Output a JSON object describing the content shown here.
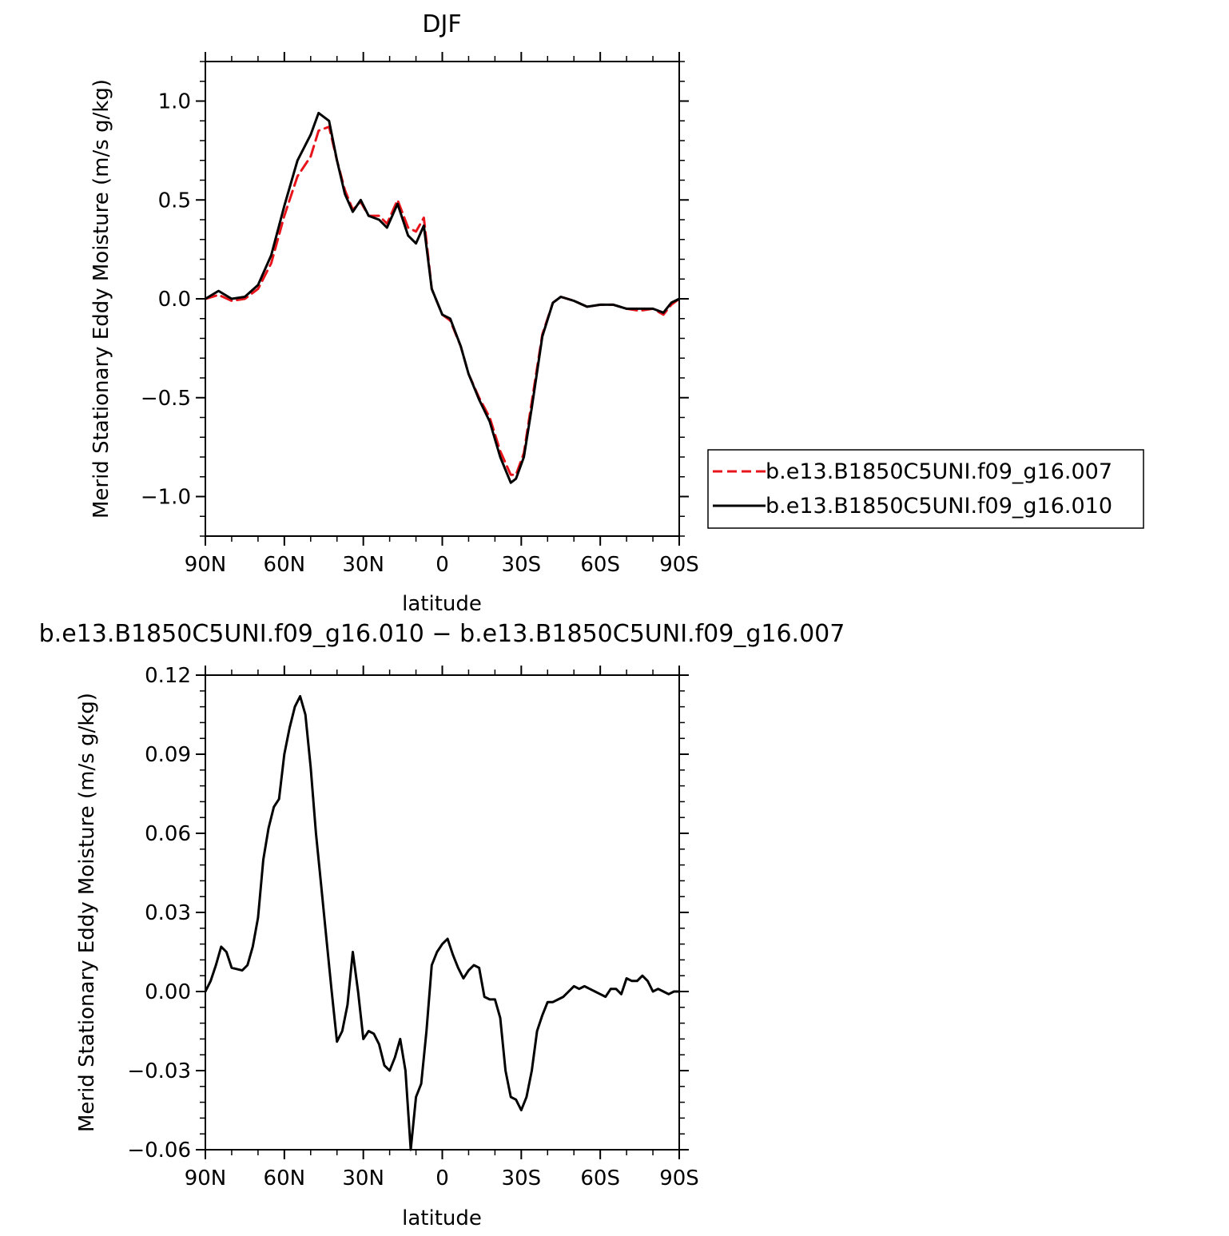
{
  "chart_data": [
    {
      "type": "line",
      "title": "DJF",
      "xlabel": "latitude",
      "ylabel": "Merid Stationary Eddy Moisture (m/s g/kg)",
      "xlim": [
        90,
        -90
      ],
      "ylim": [
        -1.2,
        1.2
      ],
      "xticks": [
        90,
        60,
        30,
        0,
        -30,
        -60,
        -90
      ],
      "xtick_labels": [
        "90N",
        "60N",
        "30N",
        "0",
        "30S",
        "60S",
        "90S"
      ],
      "yticks": [
        1.0,
        0.5,
        0.0,
        -0.5,
        -1.0
      ],
      "ytick_labels": [
        "1.0",
        "0.5",
        "0.0",
        "−0.5",
        "−1.0"
      ],
      "grid": false,
      "legend_position": "right",
      "series": [
        {
          "name": "b.e13.B1850C5UNI.f09_g16.007",
          "color": "#e8141b",
          "dash": "dashed",
          "points": [
            [
              90,
              0.0
            ],
            [
              85,
              0.02
            ],
            [
              80,
              -0.01
            ],
            [
              75,
              0.0
            ],
            [
              70,
              0.05
            ],
            [
              65,
              0.18
            ],
            [
              60,
              0.42
            ],
            [
              55,
              0.62
            ],
            [
              50,
              0.72
            ],
            [
              47,
              0.85
            ],
            [
              43,
              0.87
            ],
            [
              40,
              0.7
            ],
            [
              37,
              0.55
            ],
            [
              34,
              0.45
            ],
            [
              31,
              0.49
            ],
            [
              28,
              0.42
            ],
            [
              24,
              0.42
            ],
            [
              21,
              0.38
            ],
            [
              17,
              0.5
            ],
            [
              13,
              0.36
            ],
            [
              10,
              0.34
            ],
            [
              7,
              0.41
            ],
            [
              4,
              0.05
            ],
            [
              0,
              -0.08
            ],
            [
              -3,
              -0.11
            ],
            [
              -7,
              -0.24
            ],
            [
              -10,
              -0.38
            ],
            [
              -14,
              -0.5
            ],
            [
              -18,
              -0.6
            ],
            [
              -22,
              -0.77
            ],
            [
              -26,
              -0.89
            ],
            [
              -28,
              -0.89
            ],
            [
              -31,
              -0.78
            ],
            [
              -34,
              -0.52
            ],
            [
              -38,
              -0.18
            ],
            [
              -42,
              -0.02
            ],
            [
              -45,
              0.01
            ],
            [
              -50,
              -0.01
            ],
            [
              -55,
              -0.04
            ],
            [
              -60,
              -0.03
            ],
            [
              -65,
              -0.03
            ],
            [
              -70,
              -0.05
            ],
            [
              -75,
              -0.06
            ],
            [
              -80,
              -0.05
            ],
            [
              -84,
              -0.08
            ],
            [
              -87,
              -0.03
            ],
            [
              -90,
              0.0
            ]
          ]
        },
        {
          "name": "b.e13.B1850C5UNI.f09_g16.010",
          "color": "#000000",
          "dash": "solid",
          "points": [
            [
              90,
              0.0
            ],
            [
              85,
              0.04
            ],
            [
              80,
              0.0
            ],
            [
              75,
              0.01
            ],
            [
              70,
              0.07
            ],
            [
              65,
              0.22
            ],
            [
              60,
              0.47
            ],
            [
              55,
              0.7
            ],
            [
              50,
              0.83
            ],
            [
              47,
              0.94
            ],
            [
              43,
              0.9
            ],
            [
              40,
              0.7
            ],
            [
              37,
              0.53
            ],
            [
              34,
              0.44
            ],
            [
              31,
              0.5
            ],
            [
              28,
              0.42
            ],
            [
              24,
              0.4
            ],
            [
              21,
              0.36
            ],
            [
              17,
              0.48
            ],
            [
              13,
              0.32
            ],
            [
              10,
              0.28
            ],
            [
              7,
              0.37
            ],
            [
              4,
              0.05
            ],
            [
              0,
              -0.08
            ],
            [
              -3,
              -0.1
            ],
            [
              -7,
              -0.24
            ],
            [
              -10,
              -0.38
            ],
            [
              -14,
              -0.51
            ],
            [
              -18,
              -0.62
            ],
            [
              -22,
              -0.8
            ],
            [
              -26,
              -0.93
            ],
            [
              -28,
              -0.91
            ],
            [
              -31,
              -0.8
            ],
            [
              -34,
              -0.55
            ],
            [
              -38,
              -0.19
            ],
            [
              -42,
              -0.02
            ],
            [
              -45,
              0.01
            ],
            [
              -50,
              -0.01
            ],
            [
              -55,
              -0.04
            ],
            [
              -60,
              -0.03
            ],
            [
              -65,
              -0.03
            ],
            [
              -70,
              -0.05
            ],
            [
              -75,
              -0.05
            ],
            [
              -80,
              -0.05
            ],
            [
              -84,
              -0.07
            ],
            [
              -87,
              -0.02
            ],
            [
              -90,
              0.0
            ]
          ]
        }
      ]
    },
    {
      "type": "line",
      "title": "b.e13.B1850C5UNI.f09_g16.010 − b.e13.B1850C5UNI.f09_g16.007",
      "xlabel": "latitude",
      "ylabel": "Merid Stationary Eddy Moisture (m/s g/kg)",
      "xlim": [
        90,
        -90
      ],
      "ylim": [
        -0.06,
        0.12
      ],
      "xticks": [
        90,
        60,
        30,
        0,
        -30,
        -60,
        -90
      ],
      "xtick_labels": [
        "90N",
        "60N",
        "30N",
        "0",
        "30S",
        "60S",
        "90S"
      ],
      "yticks": [
        0.12,
        0.09,
        0.06,
        0.03,
        0.0,
        -0.03,
        -0.06
      ],
      "ytick_labels": [
        "0.12",
        "0.09",
        "0.06",
        "0.03",
        "0.00",
        "−0.03",
        "−0.06"
      ],
      "grid": false,
      "series": [
        {
          "color": "#000000",
          "dash": "solid",
          "points": [
            [
              90,
              0.0
            ],
            [
              88,
              0.004
            ],
            [
              86,
              0.01
            ],
            [
              84,
              0.017
            ],
            [
              82,
              0.015
            ],
            [
              80,
              0.009
            ],
            [
              78,
              0.0085
            ],
            [
              76,
              0.008
            ],
            [
              74,
              0.01
            ],
            [
              72,
              0.017
            ],
            [
              70,
              0.028
            ],
            [
              68,
              0.05
            ],
            [
              66,
              0.062
            ],
            [
              64,
              0.07
            ],
            [
              62,
              0.073
            ],
            [
              60,
              0.09
            ],
            [
              58,
              0.1
            ],
            [
              56,
              0.108
            ],
            [
              54,
              0.112
            ],
            [
              52,
              0.105
            ],
            [
              50,
              0.085
            ],
            [
              48,
              0.06
            ],
            [
              46,
              0.04
            ],
            [
              44,
              0.02
            ],
            [
              42,
              0.0
            ],
            [
              40,
              -0.019
            ],
            [
              38,
              -0.015
            ],
            [
              36,
              -0.005
            ],
            [
              34,
              0.015
            ],
            [
              32,
              0.0
            ],
            [
              30,
              -0.018
            ],
            [
              28,
              -0.015
            ],
            [
              26,
              -0.016
            ],
            [
              24,
              -0.02
            ],
            [
              22,
              -0.028
            ],
            [
              20,
              -0.03
            ],
            [
              18,
              -0.025
            ],
            [
              16,
              -0.018
            ],
            [
              14,
              -0.03
            ],
            [
              12,
              -0.06
            ],
            [
              10,
              -0.04
            ],
            [
              8,
              -0.035
            ],
            [
              6,
              -0.015
            ],
            [
              4,
              0.01
            ],
            [
              2,
              0.015
            ],
            [
              0,
              0.018
            ],
            [
              -2,
              0.02
            ],
            [
              -4,
              0.014
            ],
            [
              -6,
              0.009
            ],
            [
              -8,
              0.005
            ],
            [
              -10,
              0.008
            ],
            [
              -12,
              0.01
            ],
            [
              -14,
              0.009
            ],
            [
              -16,
              -0.002
            ],
            [
              -18,
              -0.003
            ],
            [
              -20,
              -0.003
            ],
            [
              -22,
              -0.01
            ],
            [
              -24,
              -0.03
            ],
            [
              -26,
              -0.04
            ],
            [
              -28,
              -0.041
            ],
            [
              -30,
              -0.045
            ],
            [
              -32,
              -0.04
            ],
            [
              -34,
              -0.03
            ],
            [
              -36,
              -0.015
            ],
            [
              -38,
              -0.009
            ],
            [
              -40,
              -0.004
            ],
            [
              -42,
              -0.004
            ],
            [
              -44,
              -0.003
            ],
            [
              -46,
              -0.002
            ],
            [
              -48,
              0.0
            ],
            [
              -50,
              0.002
            ],
            [
              -52,
              0.001
            ],
            [
              -54,
              0.002
            ],
            [
              -56,
              0.001
            ],
            [
              -58,
              0.0
            ],
            [
              -60,
              -0.001
            ],
            [
              -62,
              -0.002
            ],
            [
              -64,
              0.001
            ],
            [
              -66,
              0.001
            ],
            [
              -68,
              -0.001
            ],
            [
              -70,
              0.005
            ],
            [
              -72,
              0.004
            ],
            [
              -74,
              0.004
            ],
            [
              -76,
              0.006
            ],
            [
              -78,
              0.004
            ],
            [
              -80,
              0.0
            ],
            [
              -82,
              0.001
            ],
            [
              -84,
              0.0
            ],
            [
              -86,
              -0.001
            ],
            [
              -88,
              0.0
            ],
            [
              -90,
              0.0
            ]
          ]
        }
      ]
    }
  ]
}
